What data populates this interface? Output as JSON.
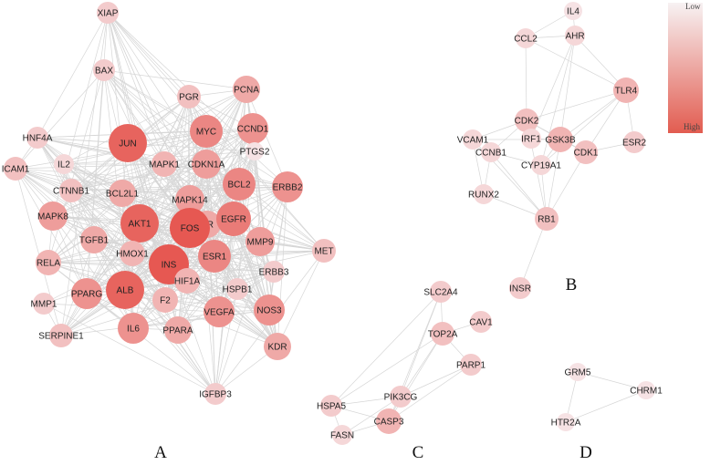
{
  "legend": {
    "low": "Low",
    "high": "High"
  },
  "panels": [
    "A",
    "B",
    "C",
    "D"
  ],
  "clusters": [
    {
      "nodes": [
        "XIAP",
        "BAX",
        "PGR",
        "PCNA",
        "HNF4A",
        "JUN",
        "MYC",
        "CCND1",
        "PTGS2",
        "ICAM1",
        "IL2",
        "MAPK1",
        "CDKN1A",
        "BCL2",
        "ERBB2",
        "CTNNB1",
        "BCL2L1",
        "MAPK14",
        "AR",
        "MAPK8",
        "AKT1",
        "FOS",
        "EGFR",
        "MET",
        "TGFB1",
        "HMOX1",
        "MMP9",
        "ESR1",
        "RELA",
        "INS",
        "HIF1A",
        "ERBB3",
        "HSPB1",
        "MMP1",
        "PPARG",
        "ALB",
        "F2",
        "VEGFA",
        "SERPINE1",
        "IL6",
        "PPARA",
        "NOS3",
        "KDR",
        "IGFBP3"
      ]
    },
    {
      "nodes": [
        "IL4",
        "CCL2",
        "AHR",
        "TLR4",
        "CDK2",
        "VCAM1",
        "IRF1",
        "GSK3B",
        "CDK1",
        "ESR2",
        "CCNB1",
        "CYP19A1",
        "RUNX2",
        "RB1",
        "INSR"
      ]
    },
    {
      "nodes": [
        "SLC2A4",
        "CAV1",
        "TOP2A",
        "PARP1",
        "PIK3CG",
        "HSPA5",
        "CASP3",
        "FASN"
      ]
    },
    {
      "nodes": [
        "GRM5",
        "CHRM1",
        "HTR2A"
      ]
    }
  ]
}
